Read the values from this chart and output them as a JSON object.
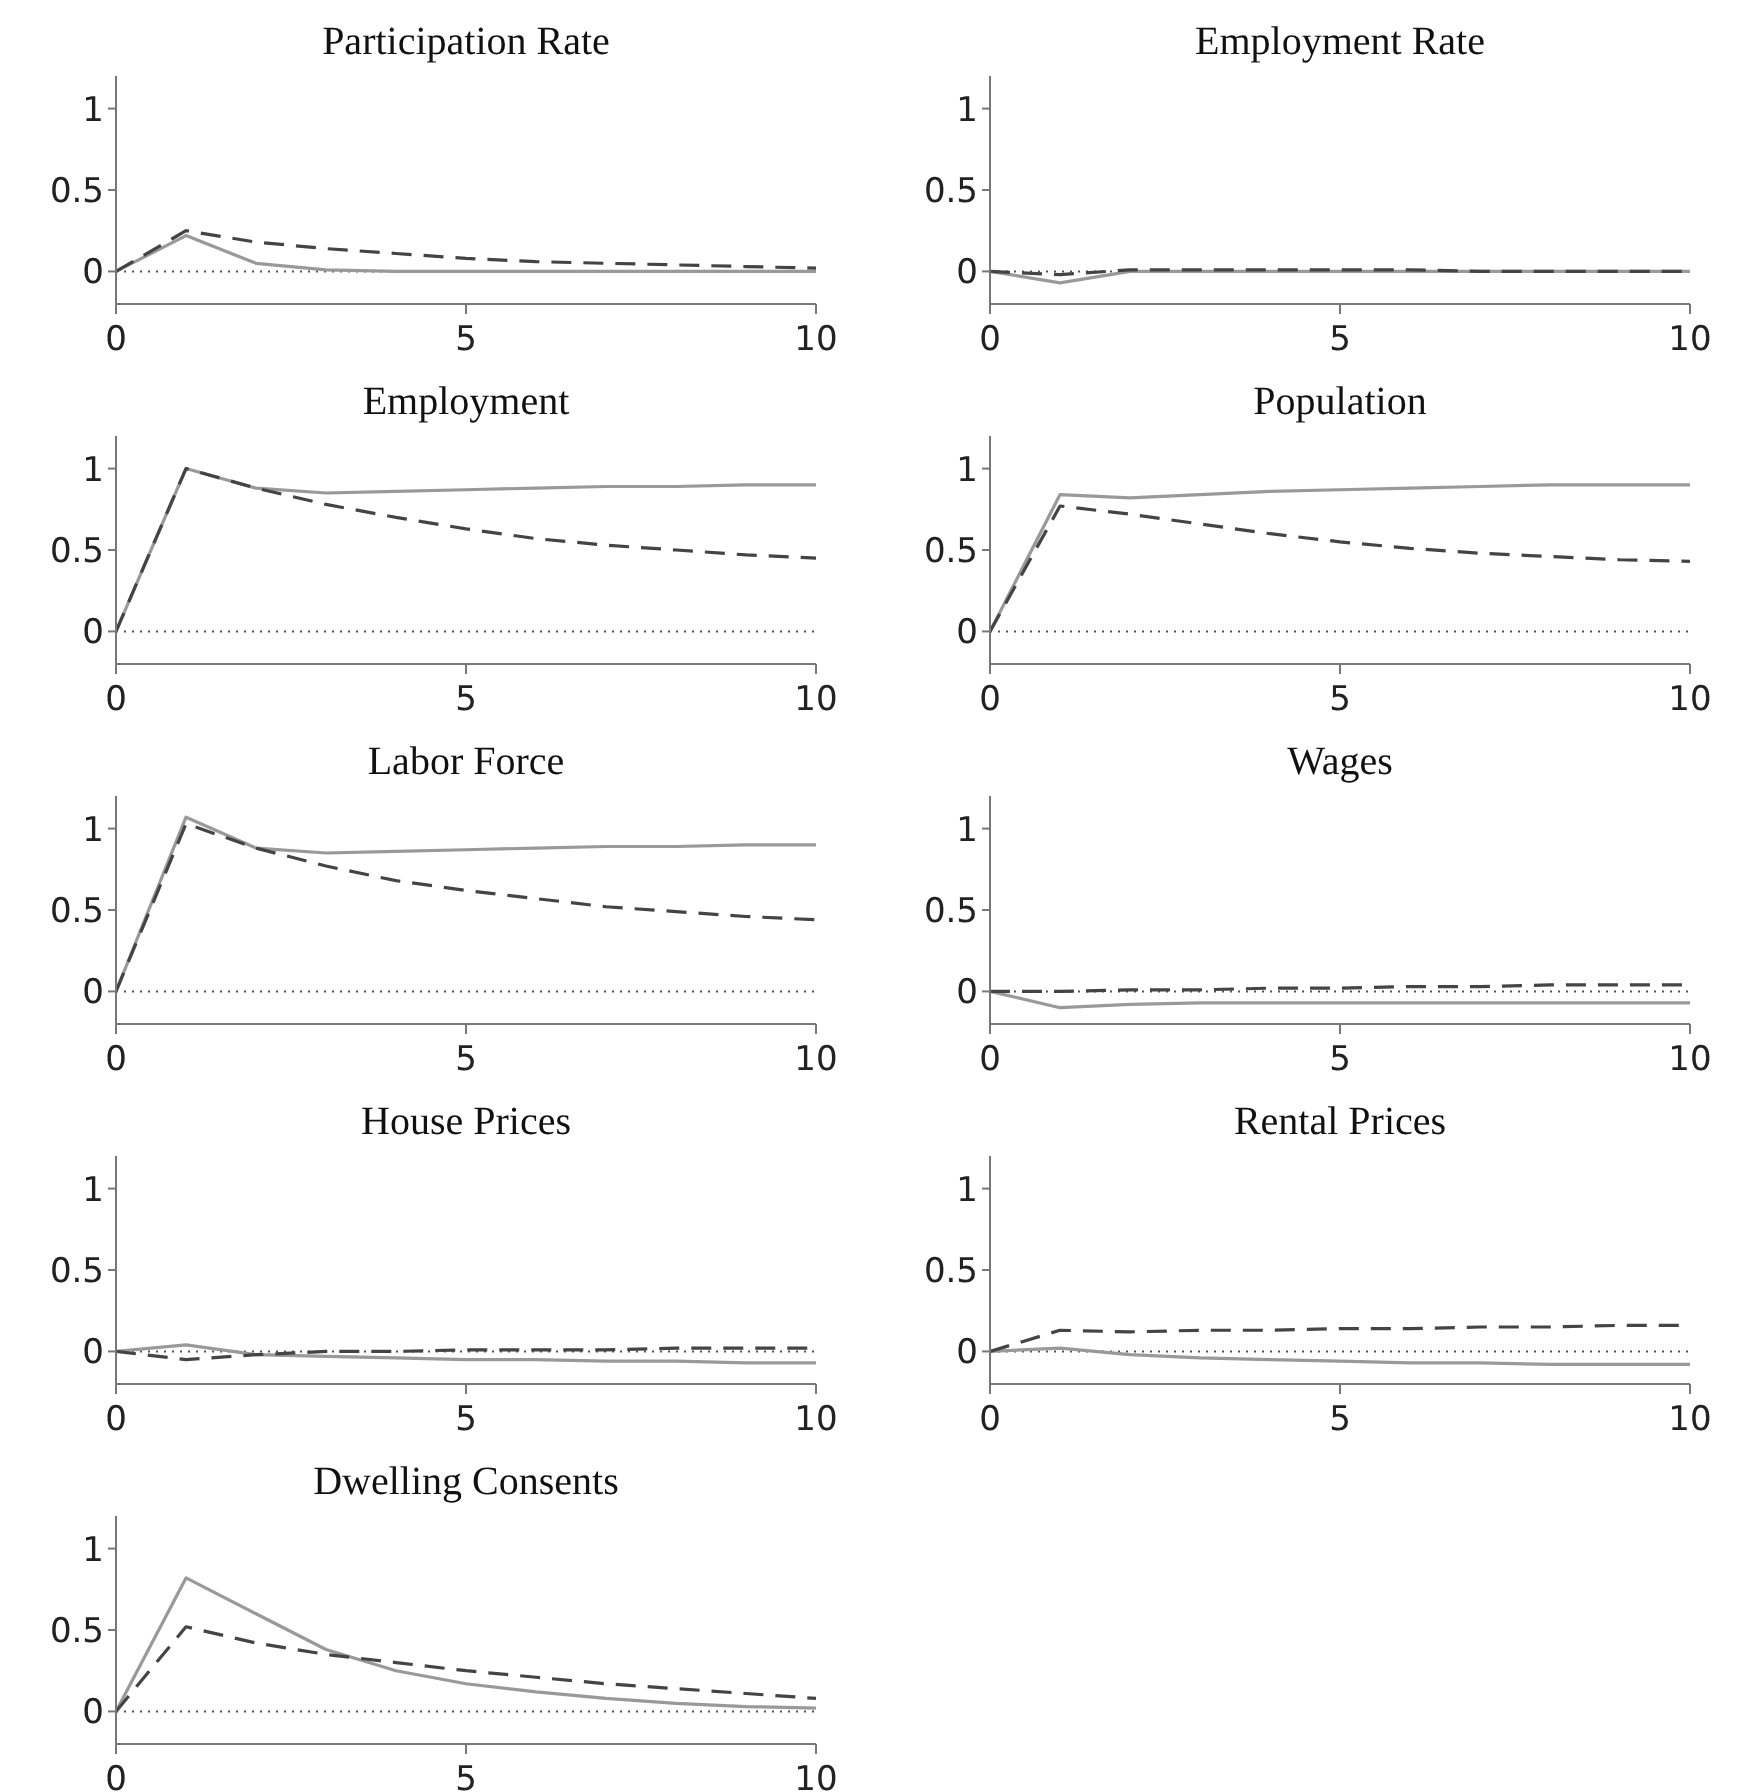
{
  "chart_data": [
    {
      "type": "line",
      "title": "Participation Rate",
      "x": [
        0,
        1,
        2,
        3,
        4,
        5,
        6,
        7,
        8,
        9,
        10
      ],
      "xlim": [
        0,
        10
      ],
      "xticks": [
        0,
        5,
        10
      ],
      "ylim": [
        -0.2,
        1.2
      ],
      "yticks": [
        0,
        0.5,
        1
      ],
      "legend": false,
      "grid": false,
      "marker": "none",
      "ref_lines": [
        {
          "axis": "y",
          "value": 0,
          "color": "#555555",
          "line_style": "dotted"
        }
      ],
      "series": [
        {
          "color": "#999999",
          "line_style": "solid",
          "values": [
            0,
            0.22,
            0.05,
            0.01,
            0,
            0,
            0,
            0,
            0,
            0,
            0
          ]
        },
        {
          "color": "#444444",
          "line_style": "dashed",
          "values": [
            0,
            0.25,
            0.18,
            0.14,
            0.11,
            0.08,
            0.06,
            0.05,
            0.04,
            0.03,
            0.02
          ]
        }
      ]
    },
    {
      "type": "line",
      "title": "Employment Rate",
      "x": [
        0,
        1,
        2,
        3,
        4,
        5,
        6,
        7,
        8,
        9,
        10
      ],
      "xlim": [
        0,
        10
      ],
      "xticks": [
        0,
        5,
        10
      ],
      "ylim": [
        -0.2,
        1.2
      ],
      "yticks": [
        0,
        0.5,
        1
      ],
      "legend": false,
      "grid": false,
      "marker": "none",
      "ref_lines": [
        {
          "axis": "y",
          "value": 0,
          "color": "#555555",
          "line_style": "dotted"
        }
      ],
      "series": [
        {
          "color": "#999999",
          "line_style": "solid",
          "values": [
            0,
            -0.07,
            0,
            0,
            0,
            0,
            0,
            0,
            0,
            0,
            0
          ]
        },
        {
          "color": "#444444",
          "line_style": "dashed",
          "values": [
            0,
            -0.02,
            0.01,
            0.01,
            0.01,
            0.01,
            0.01,
            0,
            0,
            0,
            0
          ]
        }
      ]
    },
    {
      "type": "line",
      "title": "Employment",
      "x": [
        0,
        1,
        2,
        3,
        4,
        5,
        6,
        7,
        8,
        9,
        10
      ],
      "xlim": [
        0,
        10
      ],
      "xticks": [
        0,
        5,
        10
      ],
      "ylim": [
        -0.2,
        1.2
      ],
      "yticks": [
        0,
        0.5,
        1
      ],
      "legend": false,
      "grid": false,
      "marker": "none",
      "ref_lines": [
        {
          "axis": "y",
          "value": 0,
          "color": "#555555",
          "line_style": "dotted"
        }
      ],
      "series": [
        {
          "color": "#999999",
          "line_style": "solid",
          "values": [
            0,
            1,
            0.88,
            0.85,
            0.86,
            0.87,
            0.88,
            0.89,
            0.89,
            0.9,
            0.9
          ]
        },
        {
          "color": "#444444",
          "line_style": "dashed",
          "values": [
            0,
            1,
            0.88,
            0.78,
            0.7,
            0.63,
            0.57,
            0.53,
            0.5,
            0.47,
            0.45
          ]
        }
      ]
    },
    {
      "type": "line",
      "title": "Population",
      "x": [
        0,
        1,
        2,
        3,
        4,
        5,
        6,
        7,
        8,
        9,
        10
      ],
      "xlim": [
        0,
        10
      ],
      "xticks": [
        0,
        5,
        10
      ],
      "ylim": [
        -0.2,
        1.2
      ],
      "yticks": [
        0,
        0.5,
        1
      ],
      "legend": false,
      "grid": false,
      "marker": "none",
      "ref_lines": [
        {
          "axis": "y",
          "value": 0,
          "color": "#555555",
          "line_style": "dotted"
        }
      ],
      "series": [
        {
          "color": "#999999",
          "line_style": "solid",
          "values": [
            0,
            0.84,
            0.82,
            0.84,
            0.86,
            0.87,
            0.88,
            0.89,
            0.9,
            0.9,
            0.9
          ]
        },
        {
          "color": "#444444",
          "line_style": "dashed",
          "values": [
            0,
            0.77,
            0.72,
            0.66,
            0.6,
            0.55,
            0.51,
            0.48,
            0.46,
            0.44,
            0.43
          ]
        }
      ]
    },
    {
      "type": "line",
      "title": "Labor Force",
      "x": [
        0,
        1,
        2,
        3,
        4,
        5,
        6,
        7,
        8,
        9,
        10
      ],
      "xlim": [
        0,
        10
      ],
      "xticks": [
        0,
        5,
        10
      ],
      "ylim": [
        -0.2,
        1.2
      ],
      "yticks": [
        0,
        0.5,
        1
      ],
      "legend": false,
      "grid": false,
      "marker": "none",
      "ref_lines": [
        {
          "axis": "y",
          "value": 0,
          "color": "#555555",
          "line_style": "dotted"
        }
      ],
      "series": [
        {
          "color": "#999999",
          "line_style": "solid",
          "values": [
            0,
            1.07,
            0.88,
            0.85,
            0.86,
            0.87,
            0.88,
            0.89,
            0.89,
            0.9,
            0.9
          ]
        },
        {
          "color": "#444444",
          "line_style": "dashed",
          "values": [
            0,
            1.03,
            0.88,
            0.77,
            0.68,
            0.62,
            0.57,
            0.52,
            0.49,
            0.46,
            0.44
          ]
        }
      ]
    },
    {
      "type": "line",
      "title": "Wages",
      "x": [
        0,
        1,
        2,
        3,
        4,
        5,
        6,
        7,
        8,
        9,
        10
      ],
      "xlim": [
        0,
        10
      ],
      "xticks": [
        0,
        5,
        10
      ],
      "ylim": [
        -0.2,
        1.2
      ],
      "yticks": [
        0,
        0.5,
        1
      ],
      "legend": false,
      "grid": false,
      "marker": "none",
      "ref_lines": [
        {
          "axis": "y",
          "value": 0,
          "color": "#555555",
          "line_style": "dotted"
        }
      ],
      "series": [
        {
          "color": "#999999",
          "line_style": "solid",
          "values": [
            0,
            -0.1,
            -0.08,
            -0.07,
            -0.07,
            -0.07,
            -0.07,
            -0.07,
            -0.07,
            -0.07,
            -0.07
          ]
        },
        {
          "color": "#444444",
          "line_style": "dashed",
          "values": [
            0,
            0,
            0.01,
            0.01,
            0.02,
            0.02,
            0.03,
            0.03,
            0.04,
            0.04,
            0.04
          ]
        }
      ]
    },
    {
      "type": "line",
      "title": "House Prices",
      "x": [
        0,
        1,
        2,
        3,
        4,
        5,
        6,
        7,
        8,
        9,
        10
      ],
      "xlim": [
        0,
        10
      ],
      "xticks": [
        0,
        5,
        10
      ],
      "ylim": [
        -0.2,
        1.2
      ],
      "yticks": [
        0,
        0.5,
        1
      ],
      "legend": false,
      "grid": false,
      "marker": "none",
      "ref_lines": [
        {
          "axis": "y",
          "value": 0,
          "color": "#555555",
          "line_style": "dotted"
        }
      ],
      "series": [
        {
          "color": "#999999",
          "line_style": "solid",
          "values": [
            0,
            0.04,
            -0.02,
            -0.03,
            -0.04,
            -0.05,
            -0.05,
            -0.06,
            -0.06,
            -0.07,
            -0.07
          ]
        },
        {
          "color": "#444444",
          "line_style": "dashed",
          "values": [
            0,
            -0.05,
            -0.02,
            0,
            0,
            0.01,
            0.01,
            0.01,
            0.02,
            0.02,
            0.02
          ]
        }
      ]
    },
    {
      "type": "line",
      "title": "Rental Prices",
      "x": [
        0,
        1,
        2,
        3,
        4,
        5,
        6,
        7,
        8,
        9,
        10
      ],
      "xlim": [
        0,
        10
      ],
      "xticks": [
        0,
        5,
        10
      ],
      "ylim": [
        -0.2,
        1.2
      ],
      "yticks": [
        0,
        0.5,
        1
      ],
      "legend": false,
      "grid": false,
      "marker": "none",
      "ref_lines": [
        {
          "axis": "y",
          "value": 0,
          "color": "#555555",
          "line_style": "dotted"
        }
      ],
      "series": [
        {
          "color": "#999999",
          "line_style": "solid",
          "values": [
            0,
            0.02,
            -0.02,
            -0.04,
            -0.05,
            -0.06,
            -0.07,
            -0.07,
            -0.08,
            -0.08,
            -0.08
          ]
        },
        {
          "color": "#444444",
          "line_style": "dashed",
          "values": [
            0,
            0.13,
            0.12,
            0.13,
            0.13,
            0.14,
            0.14,
            0.15,
            0.15,
            0.16,
            0.16
          ]
        }
      ]
    },
    {
      "type": "line",
      "title": "Dwelling Consents",
      "x": [
        0,
        1,
        2,
        3,
        4,
        5,
        6,
        7,
        8,
        9,
        10
      ],
      "xlim": [
        0,
        10
      ],
      "xticks": [
        0,
        5,
        10
      ],
      "ylim": [
        -0.2,
        1.2
      ],
      "yticks": [
        0,
        0.5,
        1
      ],
      "legend": false,
      "grid": false,
      "marker": "none",
      "ref_lines": [
        {
          "axis": "y",
          "value": 0,
          "color": "#555555",
          "line_style": "dotted"
        }
      ],
      "series": [
        {
          "color": "#999999",
          "line_style": "solid",
          "values": [
            0,
            0.82,
            0.6,
            0.38,
            0.25,
            0.17,
            0.12,
            0.08,
            0.05,
            0.03,
            0.02
          ]
        },
        {
          "color": "#444444",
          "line_style": "dashed",
          "values": [
            0,
            0.52,
            0.42,
            0.35,
            0.3,
            0.25,
            0.21,
            0.17,
            0.14,
            0.11,
            0.08
          ]
        }
      ]
    }
  ]
}
